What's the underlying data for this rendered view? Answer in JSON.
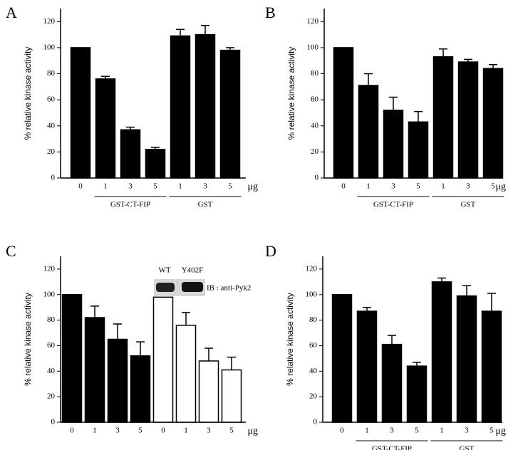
{
  "chart_data": [
    {
      "type": "bar",
      "panel": "A",
      "ylabel": "% relative kinase activity",
      "unit": "μg",
      "categories": [
        "0",
        "1",
        "3",
        "5",
        "1",
        "3",
        "5"
      ],
      "values": [
        100,
        76,
        37,
        22,
        109,
        110,
        98
      ],
      "errors": [
        null,
        2,
        2,
        1.5,
        5,
        7,
        2
      ],
      "colors": [
        "#000000",
        "#000000",
        "#000000",
        "#000000",
        "#000000",
        "#000000",
        "#000000"
      ],
      "groups": [
        {
          "label": "GST-CT-FIP",
          "span": [
            1,
            3
          ]
        },
        {
          "label": "GST",
          "span": [
            4,
            6
          ]
        }
      ],
      "ylim": [
        0,
        130
      ],
      "yticks": [
        0,
        20,
        40,
        60,
        80,
        100,
        120
      ]
    },
    {
      "type": "bar",
      "panel": "B",
      "ylabel": "% relative kinase activity",
      "unit": "μg",
      "categories": [
        "0",
        "1",
        "3",
        "5",
        "1",
        "3",
        "5"
      ],
      "values": [
        100,
        71,
        52,
        43,
        93,
        89,
        84
      ],
      "errors": [
        null,
        9,
        10,
        8,
        6,
        2,
        3
      ],
      "colors": [
        "#000000",
        "#000000",
        "#000000",
        "#000000",
        "#000000",
        "#000000",
        "#000000"
      ],
      "groups": [
        {
          "label": "GST-CT-FIP",
          "span": [
            1,
            3
          ]
        },
        {
          "label": "GST",
          "span": [
            4,
            6
          ]
        }
      ],
      "ylim": [
        0,
        130
      ],
      "yticks": [
        0,
        20,
        40,
        60,
        80,
        100,
        120
      ]
    },
    {
      "type": "bar",
      "panel": "C",
      "ylabel": "% relative kinase activity",
      "unit": "μg",
      "categories": [
        "0",
        "1",
        "3",
        "5",
        "0",
        "1",
        "3",
        "5"
      ],
      "values": [
        100,
        82,
        65,
        52,
        98,
        76,
        48,
        41
      ],
      "errors": [
        null,
        9,
        12,
        11,
        null,
        10,
        10,
        10
      ],
      "colors": [
        "#000000",
        "#000000",
        "#000000",
        "#000000",
        "#ffffff",
        "#ffffff",
        "#ffffff",
        "#ffffff"
      ],
      "annotations": [
        "WT",
        "Y402F",
        "IB : anti-Pyk2"
      ],
      "ylim": [
        0,
        130
      ],
      "yticks": [
        0,
        20,
        40,
        60,
        80,
        100,
        120
      ]
    },
    {
      "type": "bar",
      "panel": "D",
      "ylabel": "% relative kinase activity",
      "unit": "μg",
      "categories": [
        "0",
        "1",
        "3",
        "5",
        "1",
        "3",
        "5"
      ],
      "values": [
        100,
        87,
        61,
        44,
        110,
        99,
        87
      ],
      "errors": [
        null,
        3,
        7,
        3,
        3,
        8,
        14
      ],
      "colors": [
        "#000000",
        "#000000",
        "#000000",
        "#000000",
        "#000000",
        "#000000",
        "#000000"
      ],
      "groups": [
        {
          "label": "GST-CT-FIP",
          "span": [
            1,
            3
          ]
        },
        {
          "label": "GST",
          "span": [
            4,
            6
          ]
        }
      ],
      "ylim": [
        0,
        130
      ],
      "yticks": [
        0,
        20,
        40,
        60,
        80,
        100,
        120
      ]
    }
  ]
}
